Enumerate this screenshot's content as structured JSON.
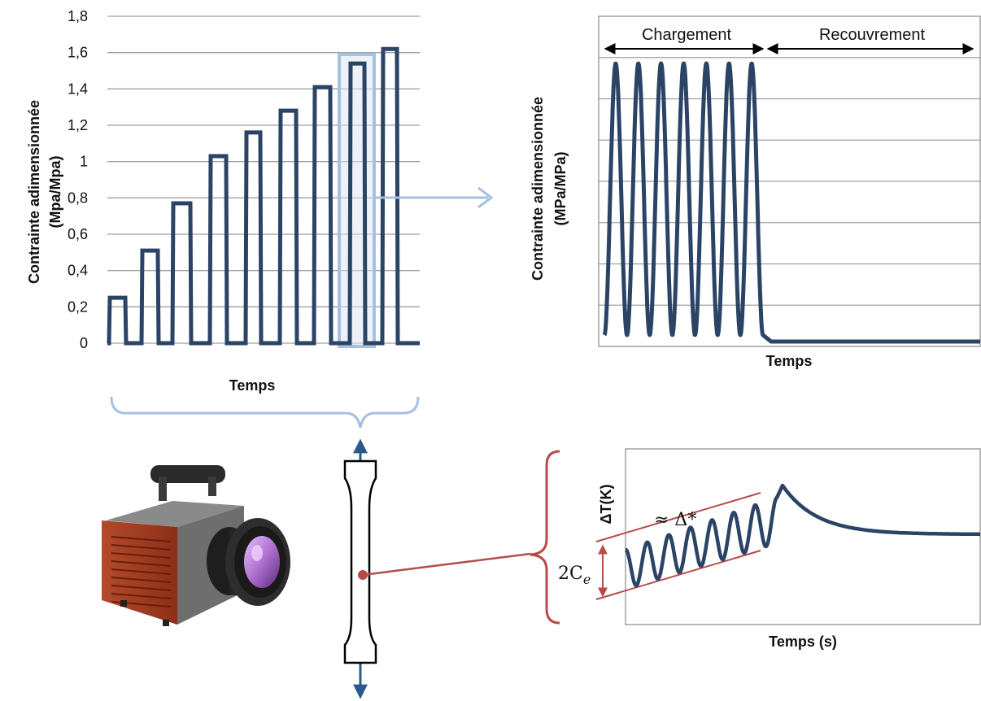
{
  "chart_data": [
    {
      "type": "line",
      "ylabel_line1": "Contrainte adimensionnée",
      "ylabel_line2": "(Mpa/Mpa)",
      "xlabel": "Temps",
      "ylim": [
        0,
        1.8
      ],
      "yticks": [
        "0",
        "0,2",
        "0,4",
        "0,6",
        "0,8",
        "1",
        "1,2",
        "1,4",
        "1,6",
        "1,8"
      ],
      "ytick_values": [
        0,
        0.2,
        0.4,
        0.6,
        0.8,
        1.0,
        1.2,
        1.4,
        1.6,
        1.8
      ],
      "block_levels": [
        0.25,
        0.51,
        0.77,
        1.03,
        1.16,
        1.28,
        1.41,
        1.54,
        1.62
      ],
      "highlighted_block": 8,
      "grid": true
    },
    {
      "type": "line",
      "ylabel_line1": "Contrainte adimensionnée",
      "ylabel_line2": "(MPa/MPa)",
      "xlabel": "Temps",
      "phases": [
        "Chargement",
        "Recouvrement"
      ],
      "cycles": 7,
      "grid": true
    },
    {
      "type": "line",
      "ylabel": "ΔT(K)",
      "xlabel": "Temps (s)",
      "annotation_delta": "≈ Δ*",
      "annotation_ce": "2C",
      "annotation_ce_sub": "e",
      "cycles": 7
    }
  ],
  "colors": {
    "signal": "#2b4466",
    "highlight": "#a6c1e0",
    "grid": "#a0a0a0",
    "measure": "#b84a4a",
    "specimen_arrow": "#2d5a8c"
  },
  "icons": [
    "thermal-camera-icon",
    "specimen-icon"
  ]
}
